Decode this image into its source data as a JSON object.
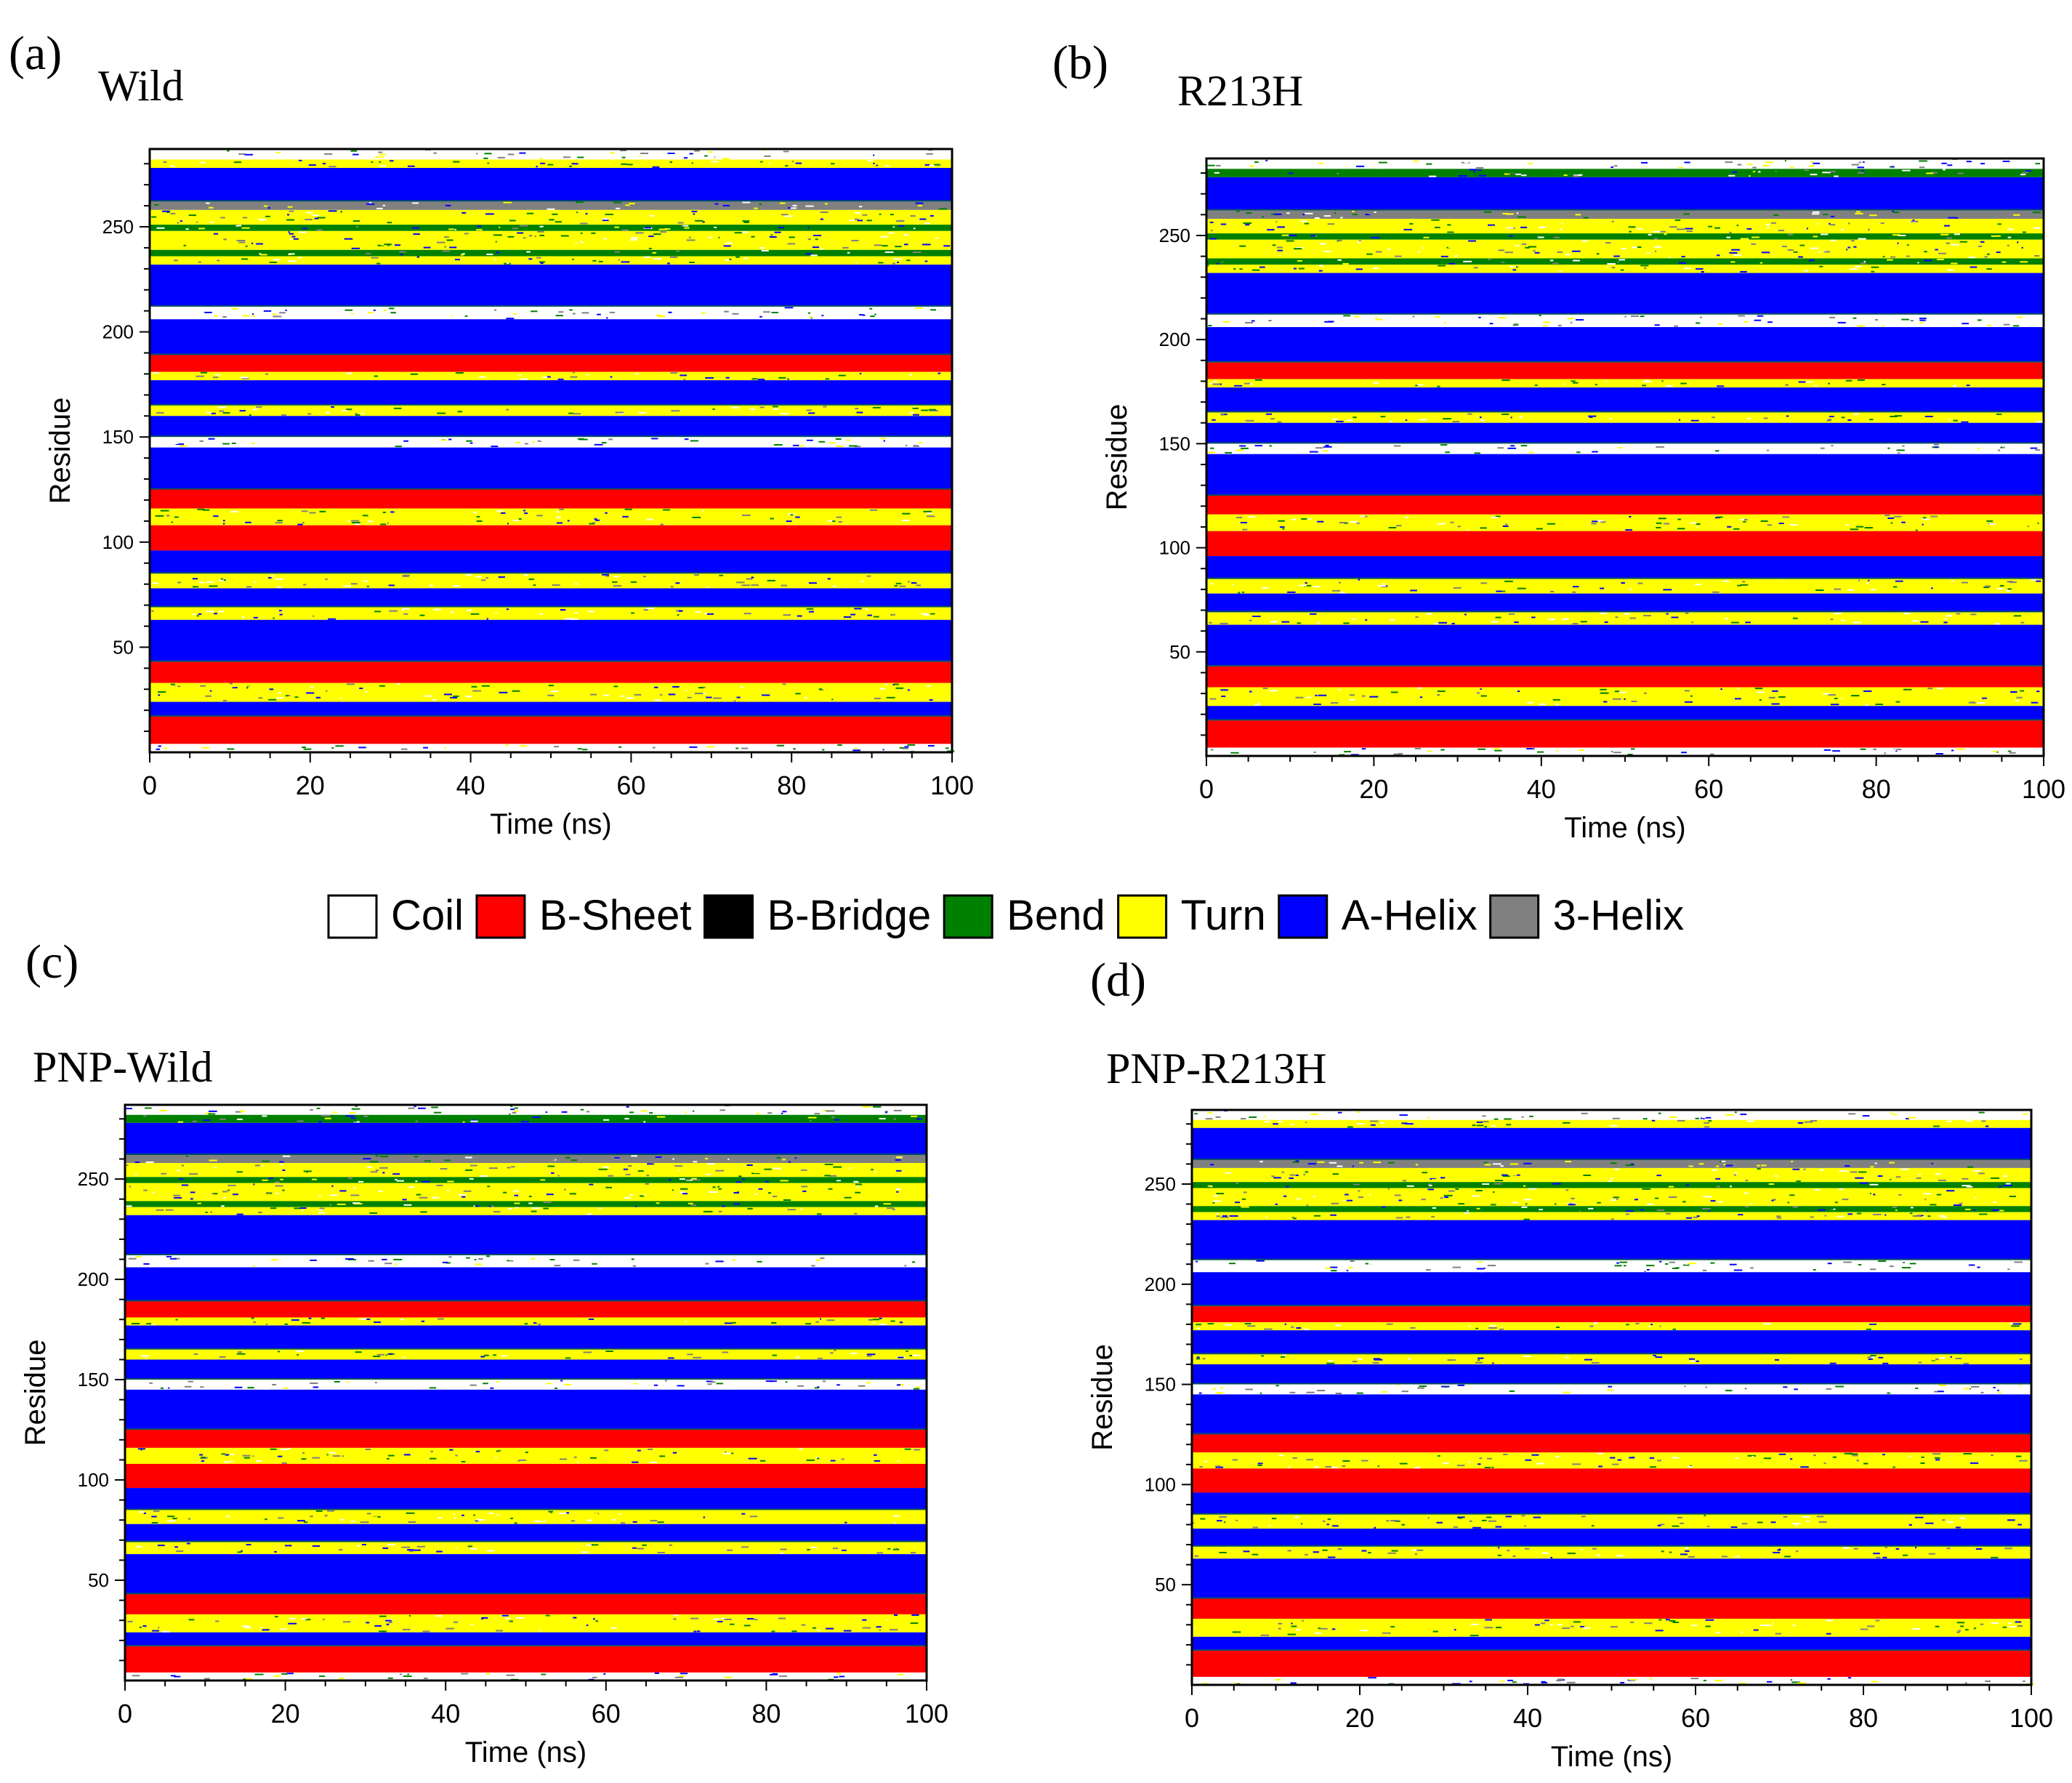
{
  "legend": {
    "items": [
      {
        "name": "Coil",
        "color": "#ffffff"
      },
      {
        "name": "B-Sheet",
        "color": "#ff0000"
      },
      {
        "name": "B-Bridge",
        "color": "#000000"
      },
      {
        "name": "Bend",
        "color": "#008000"
      },
      {
        "name": "Turn",
        "color": "#ffff00"
      },
      {
        "name": "A-Helix",
        "color": "#0000ff"
      },
      {
        "name": "3-Helix",
        "color": "#808080"
      }
    ]
  },
  "chart_data": [
    {
      "type": "heatmap",
      "panel": "(a)",
      "title": "Wild",
      "xlabel": "Time (ns)",
      "ylabel": "Residue",
      "xlim": [
        0,
        100
      ],
      "ylim": [
        1,
        287
      ],
      "xticks": [
        0,
        20,
        40,
        60,
        80,
        100
      ],
      "yticks": [
        50,
        100,
        150,
        200,
        250
      ],
      "bands": [
        [
          "Coil",
          283,
          287
        ],
        [
          "Turn",
          279,
          282
        ],
        [
          "A-Helix",
          263,
          278
        ],
        [
          "3-Helix",
          259,
          262
        ],
        [
          "Turn",
          252,
          258
        ],
        [
          "Bend",
          249,
          251
        ],
        [
          "Turn",
          240,
          248
        ],
        [
          "Bend",
          237,
          239
        ],
        [
          "Turn",
          233,
          236
        ],
        [
          "A-Helix",
          213,
          232
        ],
        [
          "Coil",
          207,
          212
        ],
        [
          "A-Helix",
          190,
          206
        ],
        [
          "B-Sheet",
          182,
          189
        ],
        [
          "Turn",
          178,
          181
        ],
        [
          "A-Helix",
          166,
          177
        ],
        [
          "Turn",
          161,
          165
        ],
        [
          "A-Helix",
          151,
          160
        ],
        [
          "Coil",
          146,
          150
        ],
        [
          "A-Helix",
          126,
          145
        ],
        [
          "B-Sheet",
          117,
          125
        ],
        [
          "Turn",
          109,
          116
        ],
        [
          "B-Sheet",
          97,
          108
        ],
        [
          "A-Helix",
          86,
          96
        ],
        [
          "Turn",
          79,
          85
        ],
        [
          "A-Helix",
          70,
          78
        ],
        [
          "Turn",
          64,
          69
        ],
        [
          "A-Helix",
          44,
          63
        ],
        [
          "B-Sheet",
          34,
          43
        ],
        [
          "Turn",
          25,
          33
        ],
        [
          "A-Helix",
          18,
          24
        ],
        [
          "B-Sheet",
          5,
          17
        ],
        [
          "Coil",
          1,
          4
        ]
      ]
    },
    {
      "type": "heatmap",
      "panel": "(b)",
      "title": "R213H",
      "xlabel": "Time (ns)",
      "ylabel": "Residue",
      "xlim": [
        0,
        100
      ],
      "ylim": [
        1,
        287
      ],
      "xticks": [
        0,
        20,
        40,
        60,
        80,
        100
      ],
      "yticks": [
        50,
        100,
        150,
        200,
        250
      ],
      "bands": [
        [
          "Coil",
          283,
          287
        ],
        [
          "Bend",
          279,
          282
        ],
        [
          "A-Helix",
          263,
          278
        ],
        [
          "3-Helix",
          259,
          262
        ],
        [
          "Turn",
          252,
          258
        ],
        [
          "Bend",
          249,
          251
        ],
        [
          "Turn",
          240,
          248
        ],
        [
          "Bend",
          237,
          239
        ],
        [
          "Turn",
          233,
          236
        ],
        [
          "A-Helix",
          213,
          232
        ],
        [
          "Coil",
          207,
          212
        ],
        [
          "A-Helix",
          190,
          206
        ],
        [
          "B-Sheet",
          182,
          189
        ],
        [
          "Turn",
          178,
          181
        ],
        [
          "A-Helix",
          166,
          177
        ],
        [
          "Turn",
          161,
          165
        ],
        [
          "A-Helix",
          151,
          160
        ],
        [
          "Coil",
          146,
          150
        ],
        [
          "A-Helix",
          126,
          145
        ],
        [
          "B-Sheet",
          117,
          125
        ],
        [
          "Turn",
          109,
          116
        ],
        [
          "B-Sheet",
          97,
          108
        ],
        [
          "A-Helix",
          86,
          96
        ],
        [
          "Turn",
          79,
          85
        ],
        [
          "A-Helix",
          70,
          78
        ],
        [
          "Turn",
          64,
          69
        ],
        [
          "A-Helix",
          44,
          63
        ],
        [
          "B-Sheet",
          34,
          43
        ],
        [
          "Turn",
          25,
          33
        ],
        [
          "A-Helix",
          18,
          24
        ],
        [
          "B-Sheet",
          5,
          17
        ],
        [
          "Coil",
          1,
          4
        ]
      ]
    },
    {
      "type": "heatmap",
      "panel": "(c)",
      "title": "PNP-Wild",
      "xlabel": "Time (ns)",
      "ylabel": "Residue",
      "xlim": [
        0,
        100
      ],
      "ylim": [
        1,
        287
      ],
      "xticks": [
        0,
        20,
        40,
        60,
        80,
        100
      ],
      "yticks": [
        50,
        100,
        150,
        200,
        250
      ],
      "bands": [
        [
          "Coil",
          283,
          287
        ],
        [
          "Bend",
          279,
          282
        ],
        [
          "A-Helix",
          263,
          278
        ],
        [
          "3-Helix",
          259,
          262
        ],
        [
          "Turn",
          252,
          258
        ],
        [
          "Bend",
          249,
          251
        ],
        [
          "Turn",
          240,
          248
        ],
        [
          "Bend",
          237,
          239
        ],
        [
          "Turn",
          233,
          236
        ],
        [
          "A-Helix",
          213,
          232
        ],
        [
          "Coil",
          207,
          212
        ],
        [
          "A-Helix",
          190,
          206
        ],
        [
          "B-Sheet",
          182,
          189
        ],
        [
          "Turn",
          178,
          181
        ],
        [
          "A-Helix",
          166,
          177
        ],
        [
          "Turn",
          161,
          165
        ],
        [
          "A-Helix",
          151,
          160
        ],
        [
          "Coil",
          146,
          150
        ],
        [
          "A-Helix",
          126,
          145
        ],
        [
          "B-Sheet",
          117,
          125
        ],
        [
          "Turn",
          109,
          116
        ],
        [
          "B-Sheet",
          97,
          108
        ],
        [
          "A-Helix",
          86,
          96
        ],
        [
          "Turn",
          79,
          85
        ],
        [
          "A-Helix",
          70,
          78
        ],
        [
          "Turn",
          64,
          69
        ],
        [
          "A-Helix",
          44,
          63
        ],
        [
          "B-Sheet",
          34,
          43
        ],
        [
          "Turn",
          25,
          33
        ],
        [
          "A-Helix",
          18,
          24
        ],
        [
          "B-Sheet",
          5,
          17
        ],
        [
          "Coil",
          1,
          4
        ]
      ]
    },
    {
      "type": "heatmap",
      "panel": "(d)",
      "title": "PNP-R213H",
      "xlabel": "Time (ns)",
      "ylabel": "Residue",
      "xlim": [
        0,
        100
      ],
      "ylim": [
        1,
        287
      ],
      "xticks": [
        0,
        20,
        40,
        60,
        80,
        100
      ],
      "yticks": [
        50,
        100,
        150,
        200,
        250
      ],
      "bands": [
        [
          "Coil",
          283,
          287
        ],
        [
          "Turn",
          279,
          282
        ],
        [
          "A-Helix",
          263,
          278
        ],
        [
          "3-Helix",
          259,
          262
        ],
        [
          "Turn",
          252,
          258
        ],
        [
          "Bend",
          249,
          251
        ],
        [
          "Turn",
          240,
          248
        ],
        [
          "Bend",
          237,
          239
        ],
        [
          "Turn",
          233,
          236
        ],
        [
          "A-Helix",
          213,
          232
        ],
        [
          "Coil",
          207,
          212
        ],
        [
          "A-Helix",
          190,
          206
        ],
        [
          "B-Sheet",
          182,
          189
        ],
        [
          "Turn",
          178,
          181
        ],
        [
          "A-Helix",
          166,
          177
        ],
        [
          "Turn",
          161,
          165
        ],
        [
          "A-Helix",
          151,
          160
        ],
        [
          "Coil",
          146,
          150
        ],
        [
          "A-Helix",
          126,
          145
        ],
        [
          "B-Sheet",
          117,
          125
        ],
        [
          "Turn",
          109,
          116
        ],
        [
          "B-Sheet",
          97,
          108
        ],
        [
          "A-Helix",
          86,
          96
        ],
        [
          "Turn",
          79,
          85
        ],
        [
          "A-Helix",
          70,
          78
        ],
        [
          "Turn",
          64,
          69
        ],
        [
          "A-Helix",
          44,
          63
        ],
        [
          "B-Sheet",
          34,
          43
        ],
        [
          "Turn",
          25,
          33
        ],
        [
          "A-Helix",
          18,
          24
        ],
        [
          "B-Sheet",
          5,
          17
        ],
        [
          "Coil",
          1,
          4
        ]
      ]
    }
  ]
}
